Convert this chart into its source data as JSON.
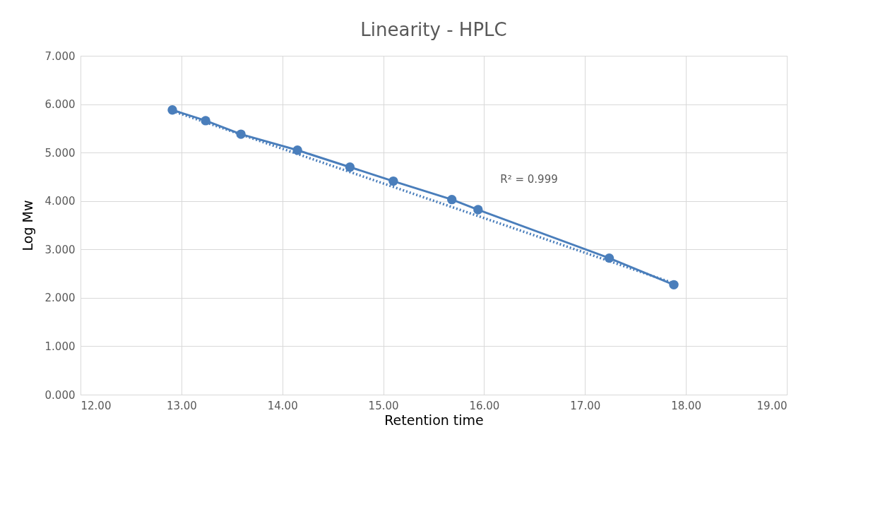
{
  "chart_data": {
    "type": "line",
    "title": "Linearity - HPLC",
    "xlabel": "Retention time",
    "ylabel": "Log Mw",
    "series": [
      {
        "color": "#4a7ebb",
        "marker": "circle",
        "line_style": "solid",
        "x": [
          12.91,
          13.24,
          13.59,
          14.15,
          14.67,
          15.1,
          15.68,
          15.94,
          17.24,
          17.88
        ],
        "values": [
          5.88,
          5.66,
          5.38,
          5.05,
          4.7,
          4.41,
          4.03,
          3.82,
          2.82,
          2.27
        ]
      },
      {
        "color": "#4a7ebb",
        "marker": "none",
        "line_style": "dotted",
        "x": [
          12.91,
          17.88
        ],
        "values": [
          5.86,
          2.3
        ]
      }
    ],
    "annotations": [
      "R² = 0.999"
    ],
    "xlim": [
      12,
      19
    ],
    "ylim": [
      0,
      7
    ],
    "xticks": [
      {
        "value": 12,
        "label": "12.00"
      },
      {
        "value": 13,
        "label": "13.00"
      },
      {
        "value": 14,
        "label": "14.00"
      },
      {
        "value": 15,
        "label": "15.00"
      },
      {
        "value": 16,
        "label": "16.00"
      },
      {
        "value": 17,
        "label": "17.00"
      },
      {
        "value": 18,
        "label": "18.00"
      },
      {
        "value": 19,
        "label": "19.00"
      }
    ],
    "yticks": [
      {
        "value": 0,
        "label": "0.000"
      },
      {
        "value": 1,
        "label": "1.000"
      },
      {
        "value": 2,
        "label": "2.000"
      },
      {
        "value": 3,
        "label": "3.000"
      },
      {
        "value": 4,
        "label": "4.000"
      },
      {
        "value": 5,
        "label": "5.000"
      },
      {
        "value": 6,
        "label": "6.000"
      },
      {
        "value": 7,
        "label": "7.000"
      }
    ],
    "grid": true
  }
}
